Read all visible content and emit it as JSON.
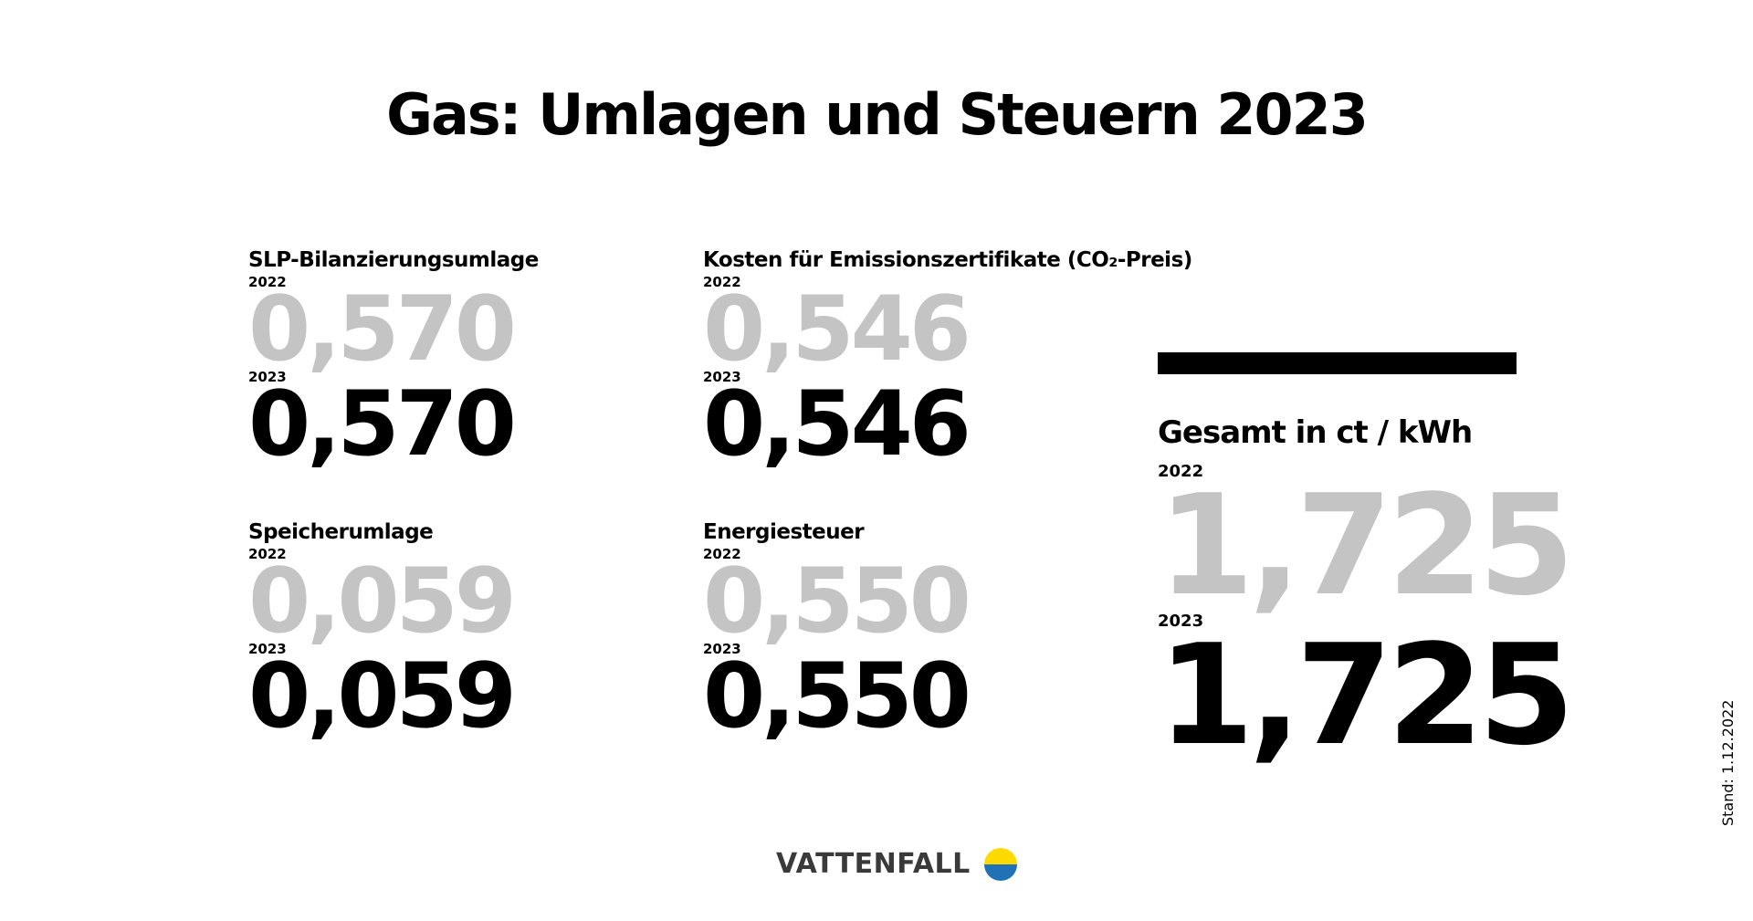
{
  "title": "Gas: Umlagen und Steuern 2023",
  "items": [
    {
      "label": "SLP-Bilanzierungsumlage",
      "year_prev": "2022",
      "value_prev": "0,570",
      "year_curr": "2023",
      "value_curr": "0,570"
    },
    {
      "label": "Kosten für Emissionszertifikate (CO₂-Preis)",
      "year_prev": "2022",
      "value_prev": "0,546",
      "year_curr": "2023",
      "value_curr": "0,546"
    },
    {
      "label": "Speicherumlage",
      "year_prev": "2022",
      "value_prev": "0,059",
      "year_curr": "2023",
      "value_curr": "0,059"
    },
    {
      "label": "Energiesteuer",
      "year_prev": "2022",
      "value_prev": "0,550",
      "year_curr": "2023",
      "value_curr": "0,550"
    }
  ],
  "total": {
    "label": "Gesamt in ct / kWh",
    "year_prev": "2022",
    "value_prev": "1,725",
    "year_curr": "2023",
    "value_curr": "1,725"
  },
  "brand": {
    "name": "VATTENFALL",
    "logo_colors": {
      "top": "#ffda00",
      "bottom": "#2071b5"
    }
  },
  "stand": "Stand: 1.12.2022",
  "colors": {
    "previous_year": "#c4c4c4",
    "current_year": "#000000"
  }
}
